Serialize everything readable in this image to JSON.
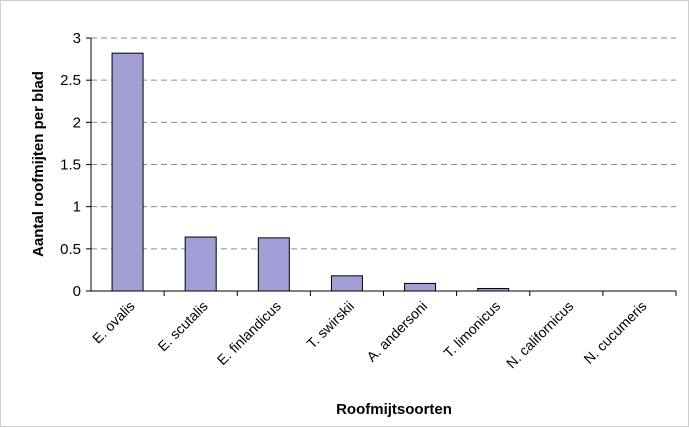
{
  "chart_data": {
    "type": "bar",
    "title": "",
    "xlabel": "Roofmijtsoorten",
    "ylabel": "Aantal roofmijten per blad",
    "categories": [
      "E. ovalis",
      "E. scutalis",
      "E. finlandicus",
      "T. swirskii",
      "A. andersoni",
      "T. limonicus",
      "N. californicus",
      "N. cucumeris"
    ],
    "values": [
      2.82,
      0.64,
      0.63,
      0.18,
      0.09,
      0.03,
      0.0,
      0.0
    ],
    "ylim": [
      0,
      3
    ],
    "yticks": [
      "0",
      "0.5",
      "1",
      "1.5",
      "2",
      "2.5",
      "3"
    ],
    "grid": "horizontal dashed",
    "legend": "none",
    "colors": {
      "bar_fill": "#a29ed6",
      "bar_stroke": "#000000",
      "grid": "#8a8a8a",
      "axis": "#000000"
    }
  }
}
